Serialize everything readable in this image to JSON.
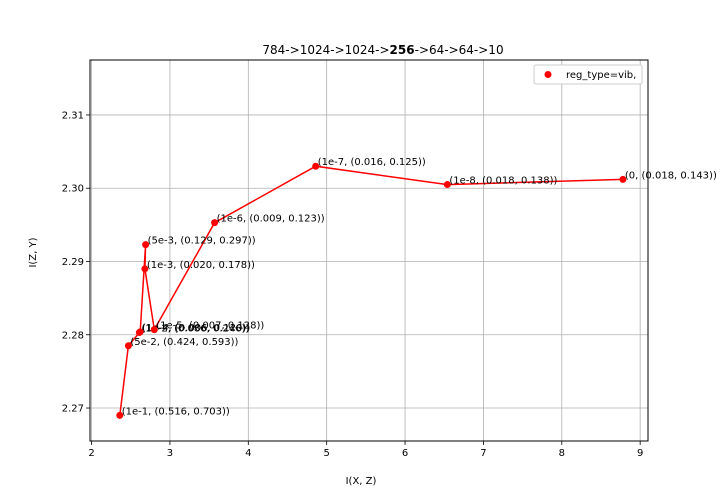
{
  "chart_data": {
    "type": "line",
    "title_parts": [
      {
        "text": "784->1024->1024->",
        "bold": false
      },
      {
        "text": "256",
        "bold": true
      },
      {
        "text": "->64->64->10",
        "bold": false
      }
    ],
    "xlabel": "I(X, Z)",
    "ylabel": "I(Z, Y)",
    "xlim": [
      1.98,
      9.1
    ],
    "ylim": [
      2.2655,
      2.3175
    ],
    "xticks": [
      2,
      3,
      4,
      5,
      6,
      7,
      8,
      9
    ],
    "yticks": [
      2.27,
      2.28,
      2.29,
      2.3,
      2.31
    ],
    "ytick_labels": [
      "2.27",
      "2.28",
      "2.29",
      "2.30",
      "2.31"
    ],
    "grid": true,
    "legend": {
      "placement": "top-right"
    },
    "series": [
      {
        "name": "reg_type=vib,",
        "color": "#ff0000",
        "points": [
          {
            "x": 2.36,
            "y": 2.269,
            "label": "(1e-1, (0.516, 0.703))"
          },
          {
            "x": 2.47,
            "y": 2.2785,
            "label": "(5e-2, (0.424, 0.593))"
          },
          {
            "x": 2.61,
            "y": 2.2803,
            "label": "(1e-2, (0.086, 0.246))"
          },
          {
            "x": 2.62,
            "y": 2.2804,
            "label": "(1e-4, (0.006, 0.120))"
          },
          {
            "x": 2.69,
            "y": 2.2923,
            "label": "(5e-3, (0.129, 0.297))"
          },
          {
            "x": 2.68,
            "y": 2.289,
            "label": "(1e-3, (0.020, 0.178))"
          },
          {
            "x": 2.8,
            "y": 2.2807,
            "label": "(1e-5, (0.007, 0.128))"
          },
          {
            "x": 3.57,
            "y": 2.2953,
            "label": "(1e-6, (0.009, 0.123))"
          },
          {
            "x": 4.86,
            "y": 2.303,
            "label": "(1e-7, (0.016, 0.125))"
          },
          {
            "x": 6.54,
            "y": 2.3005,
            "label": "(1e-8, (0.018, 0.138))"
          },
          {
            "x": 8.78,
            "y": 2.3012,
            "label": "(0, (0.018, 0.143))"
          }
        ]
      }
    ]
  }
}
